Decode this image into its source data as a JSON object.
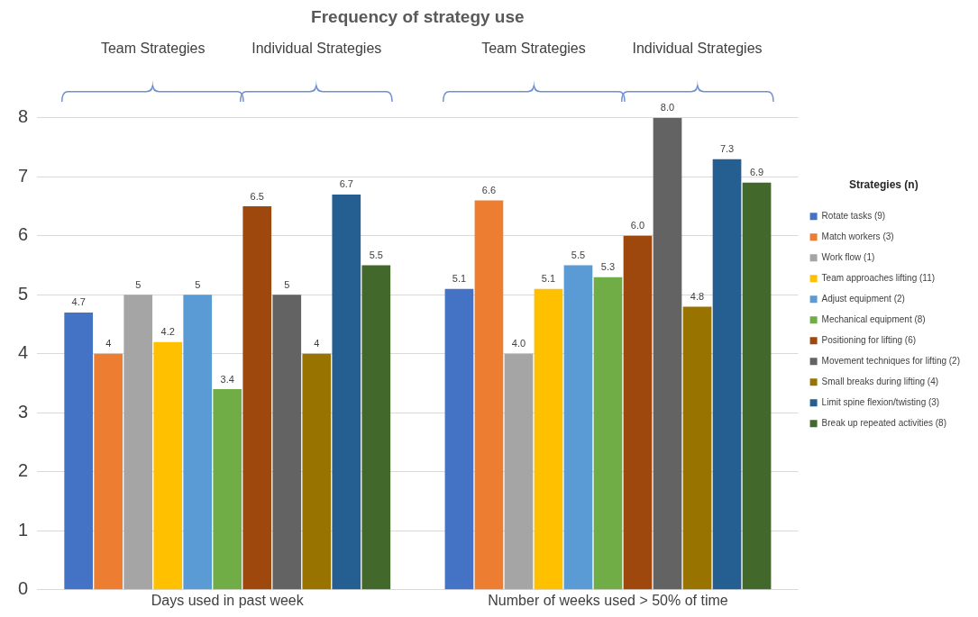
{
  "chart_data": {
    "type": "bar",
    "title": "Frequency of strategy use",
    "categories": [
      "Days used in past week",
      "Number of weeks used > 50% of time"
    ],
    "ylim": [
      0,
      8
    ],
    "yticks": [
      0,
      1,
      2,
      3,
      4,
      5,
      6,
      7,
      8
    ],
    "grid": "y",
    "legend": "right",
    "legend_title": "Strategies (n)",
    "annotations": [
      "Team Strategies",
      "Individual Strategies",
      "Team Strategies",
      "Individual Strategies"
    ],
    "series": [
      {
        "name": "Rotate tasks (9)",
        "color": "#4472c4",
        "values": [
          4.7,
          5.1
        ],
        "value_labels": [
          "4.7",
          "5.1"
        ]
      },
      {
        "name": "Match workers (3)",
        "color": "#ed7d31",
        "values": [
          4,
          6.6
        ],
        "value_labels": [
          "4",
          "6.6"
        ]
      },
      {
        "name": "Work flow (1)",
        "color": "#a5a5a5",
        "values": [
          5,
          4.0
        ],
        "value_labels": [
          "5",
          "4.0"
        ]
      },
      {
        "name": "Team approaches lifting (11)",
        "color": "#ffc000",
        "values": [
          4.2,
          5.1
        ],
        "value_labels": [
          "4.2",
          "5.1"
        ]
      },
      {
        "name": "Adjust equipment (2)",
        "color": "#5b9bd5",
        "values": [
          5,
          5.5
        ],
        "value_labels": [
          "5",
          "5.5"
        ]
      },
      {
        "name": "Mechanical equipment (8)",
        "color": "#70ad47",
        "values": [
          3.4,
          5.3
        ],
        "value_labels": [
          "3.4",
          "5.3"
        ]
      },
      {
        "name": "Positioning for lifting (6)",
        "color": "#9e480e",
        "values": [
          6.5,
          6.0
        ],
        "value_labels": [
          "6.5",
          "6.0"
        ]
      },
      {
        "name": "Movement techniques for lifting (2)",
        "color": "#636363",
        "values": [
          5,
          8.0
        ],
        "value_labels": [
          "5",
          "8.0"
        ]
      },
      {
        "name": "Small breaks during lifting (4)",
        "color": "#997300",
        "values": [
          4,
          4.8
        ],
        "value_labels": [
          "4",
          "4.8"
        ]
      },
      {
        "name": "Limit spine flexion/twisting (3)",
        "color": "#255e91",
        "values": [
          6.7,
          7.3
        ],
        "value_labels": [
          "6.7",
          "7.3"
        ]
      },
      {
        "name": "Break up repeated activities (8)",
        "color": "#43682b",
        "values": [
          5.5,
          6.9
        ],
        "value_labels": [
          "5.5",
          "6.9"
        ]
      }
    ]
  }
}
